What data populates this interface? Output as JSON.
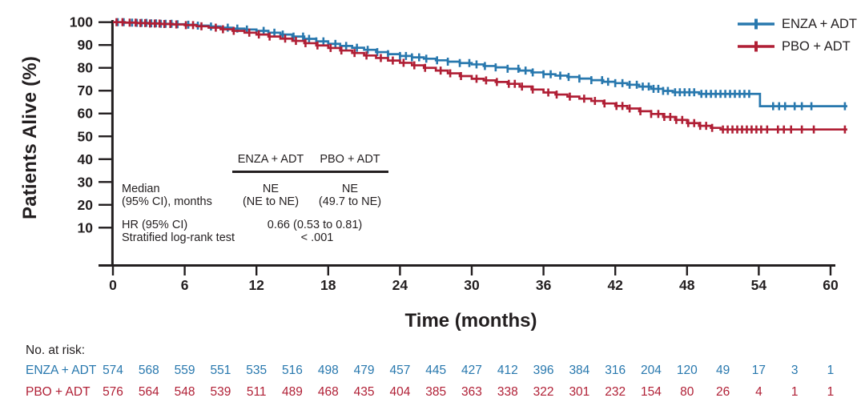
{
  "figure": {
    "y_axis_title": "Patients Alive (%)",
    "x_axis_title": "Time (months)"
  },
  "legend": {
    "items": [
      {
        "label": "ENZA + ADT",
        "color": "#2878AE",
        "marker": "plus-tick-on-line"
      },
      {
        "label": "PBO + ADT",
        "color": "#B01F35",
        "marker": "plus-tick-on-line"
      }
    ]
  },
  "stats_table": {
    "col_headers": [
      "ENZA + ADT",
      "PBO + ADT"
    ],
    "median_label_line1": "Median",
    "median_label_line2": "(95% CI), months",
    "median_enza_line1": "NE",
    "median_enza_line2": "(NE to NE)",
    "median_pbo_line1": "NE",
    "median_pbo_line2": "(49.7 to NE)",
    "hr_label": "HR (95% CI)",
    "hr_value": "0.66 (0.53 to 0.81)",
    "logrank_label": "Stratified log-rank test",
    "logrank_value": "< .001"
  },
  "risk_table": {
    "title": "No. at risk:",
    "times": [
      0,
      3,
      6,
      9,
      12,
      15,
      18,
      21,
      24,
      27,
      30,
      33,
      36,
      39,
      42,
      45,
      48,
      51,
      54,
      57,
      60
    ],
    "rows": [
      {
        "label": "ENZA + ADT",
        "color": "#2878AE",
        "counts": [
          574,
          568,
          559,
          551,
          535,
          516,
          498,
          479,
          457,
          445,
          427,
          412,
          396,
          384,
          316,
          204,
          120,
          49,
          17,
          3,
          1
        ]
      },
      {
        "label": "PBO + ADT",
        "color": "#B01F35",
        "counts": [
          576,
          564,
          548,
          539,
          511,
          489,
          468,
          435,
          404,
          385,
          363,
          338,
          322,
          301,
          232,
          154,
          80,
          26,
          4,
          1,
          1
        ]
      }
    ]
  },
  "chart_data": {
    "type": "line",
    "subtype": "kaplan-meier-step",
    "title": "",
    "xlabel": "Time (months)",
    "ylabel": "Patients Alive (%)",
    "xlim": [
      0,
      62
    ],
    "ylim": [
      0,
      100
    ],
    "x_ticks": [
      0,
      6,
      12,
      18,
      24,
      30,
      36,
      42,
      48,
      54,
      60
    ],
    "y_ticks": [
      100,
      90,
      80,
      70,
      60,
      50,
      40,
      30,
      20,
      10
    ],
    "grid": false,
    "legend_position": "top-right",
    "axis_color": "#231F20",
    "series": [
      {
        "name": "ENZA + ADT",
        "color": "#2878AE",
        "points": [
          [
            0,
            100
          ],
          [
            1,
            99.8
          ],
          [
            2,
            99.7
          ],
          [
            3,
            99.5
          ],
          [
            4,
            99.3
          ],
          [
            5,
            99.1
          ],
          [
            6,
            98.9
          ],
          [
            7,
            98.5
          ],
          [
            8,
            98.1
          ],
          [
            9,
            97.6
          ],
          [
            10,
            97.2
          ],
          [
            11,
            96.8
          ],
          [
            12,
            96.2
          ],
          [
            13,
            95.4
          ],
          [
            14,
            94.6
          ],
          [
            15,
            93.7
          ],
          [
            16,
            92.7
          ],
          [
            17,
            91.6
          ],
          [
            18,
            90.5
          ],
          [
            19,
            89.6
          ],
          [
            20,
            88.8
          ],
          [
            21,
            87.9
          ],
          [
            22,
            86.9
          ],
          [
            23,
            86.0
          ],
          [
            24,
            85.2
          ],
          [
            25,
            84.6
          ],
          [
            26,
            84.0
          ],
          [
            27,
            83.3
          ],
          [
            28,
            82.7
          ],
          [
            29,
            82.1
          ],
          [
            30,
            81.5
          ],
          [
            31,
            80.8
          ],
          [
            32,
            80.2
          ],
          [
            33,
            79.6
          ],
          [
            34,
            78.8
          ],
          [
            35,
            78.0
          ],
          [
            36,
            77.2
          ],
          [
            37,
            76.6
          ],
          [
            38,
            76.0
          ],
          [
            39,
            75.3
          ],
          [
            40,
            74.6
          ],
          [
            41,
            73.9
          ],
          [
            42,
            73.3
          ],
          [
            43,
            72.6
          ],
          [
            44,
            71.8
          ],
          [
            45,
            70.8
          ],
          [
            46,
            69.9
          ],
          [
            46.8,
            69.3
          ],
          [
            49,
            68.6
          ],
          [
            54.1,
            63.2
          ],
          [
            61.4,
            63.2
          ]
        ],
        "censor_times": [
          0.4,
          0.9,
          1.6,
          2.0,
          2.4,
          2.8,
          3.2,
          3.6,
          4.0,
          4.4,
          4.9,
          5.4,
          6.3,
          7.1,
          8.2,
          9.6,
          10.4,
          11.2,
          12.6,
          13.5,
          14.2,
          15.1,
          15.9,
          16.4,
          17.0,
          17.6,
          18.6,
          19.5,
          20.4,
          21.3,
          22.1,
          23.0,
          24.0,
          24.5,
          25.0,
          25.6,
          26.2,
          27.1,
          28.0,
          29.0,
          29.8,
          30.4,
          31.1,
          32.0,
          33.0,
          33.9,
          34.5,
          35.1,
          36.0,
          36.6,
          37.4,
          38.1,
          39.0,
          40.0,
          40.9,
          41.4,
          42.0,
          42.6,
          43.2,
          43.8,
          44.3,
          44.8,
          45.2,
          45.6,
          46.0,
          46.4,
          47.0,
          47.4,
          47.8,
          48.2,
          48.6,
          49.2,
          49.6,
          50.0,
          50.4,
          50.8,
          51.2,
          51.6,
          52.0,
          52.4,
          52.8,
          53.2,
          55.2,
          55.7,
          56.2,
          57.0,
          57.6,
          58.4,
          61.2
        ]
      },
      {
        "name": "PBO + ADT",
        "color": "#B01F35",
        "points": [
          [
            0,
            100
          ],
          [
            1,
            99.8
          ],
          [
            2,
            99.6
          ],
          [
            3,
            99.4
          ],
          [
            4,
            99.2
          ],
          [
            5,
            99.0
          ],
          [
            6,
            98.7
          ],
          [
            7,
            98.2
          ],
          [
            8,
            97.6
          ],
          [
            9,
            96.9
          ],
          [
            10,
            96.2
          ],
          [
            11,
            95.4
          ],
          [
            12,
            94.6
          ],
          [
            13,
            93.7
          ],
          [
            14,
            92.8
          ],
          [
            15,
            91.8
          ],
          [
            16,
            90.8
          ],
          [
            17,
            89.8
          ],
          [
            18,
            88.7
          ],
          [
            19,
            87.6
          ],
          [
            20,
            86.5
          ],
          [
            21,
            85.4
          ],
          [
            22,
            84.3
          ],
          [
            23,
            83.2
          ],
          [
            24,
            82.2
          ],
          [
            25,
            81.1
          ],
          [
            26,
            80.0
          ],
          [
            27,
            78.8
          ],
          [
            28,
            77.6
          ],
          [
            29,
            76.4
          ],
          [
            30,
            75.2
          ],
          [
            31,
            74.5
          ],
          [
            32,
            73.8
          ],
          [
            33,
            73.0
          ],
          [
            34,
            71.8
          ],
          [
            35,
            70.5
          ],
          [
            36,
            69.2
          ],
          [
            37,
            68.3
          ],
          [
            38,
            67.4
          ],
          [
            39,
            66.5
          ],
          [
            40,
            65.5
          ],
          [
            41,
            64.4
          ],
          [
            42,
            63.3
          ],
          [
            43,
            62.2
          ],
          [
            44,
            61.0
          ],
          [
            45,
            59.8
          ],
          [
            46,
            58.5
          ],
          [
            47,
            57.2
          ],
          [
            48,
            55.8
          ],
          [
            49,
            54.6
          ],
          [
            50,
            53.7
          ],
          [
            50.8,
            53.0
          ],
          [
            61.4,
            53.0
          ]
        ],
        "censor_times": [
          0.3,
          0.8,
          1.4,
          1.9,
          2.3,
          2.7,
          3.1,
          3.5,
          3.9,
          4.3,
          4.8,
          5.3,
          6.1,
          6.7,
          7.4,
          8.6,
          9.2,
          10.1,
          11.4,
          12.2,
          13.1,
          14.4,
          15.3,
          16.1,
          17.1,
          18.2,
          19.1,
          20.2,
          21.2,
          22.4,
          23.4,
          24.3,
          25.2,
          26.1,
          27.4,
          28.2,
          29.1,
          30.4,
          31.2,
          32.1,
          33.1,
          33.6,
          34.2,
          35.1,
          36.4,
          37.1,
          38.2,
          39.4,
          40.3,
          41.1,
          42.1,
          42.6,
          43.2,
          44.1,
          45.0,
          45.6,
          46.1,
          46.6,
          47.1,
          47.6,
          48.1,
          48.6,
          49.1,
          49.6,
          50.1,
          51.0,
          51.4,
          51.8,
          52.2,
          52.6,
          53.0,
          53.4,
          53.8,
          54.2,
          54.7,
          55.6,
          56.1,
          56.7,
          57.6,
          58.6,
          61.2
        ]
      }
    ]
  }
}
